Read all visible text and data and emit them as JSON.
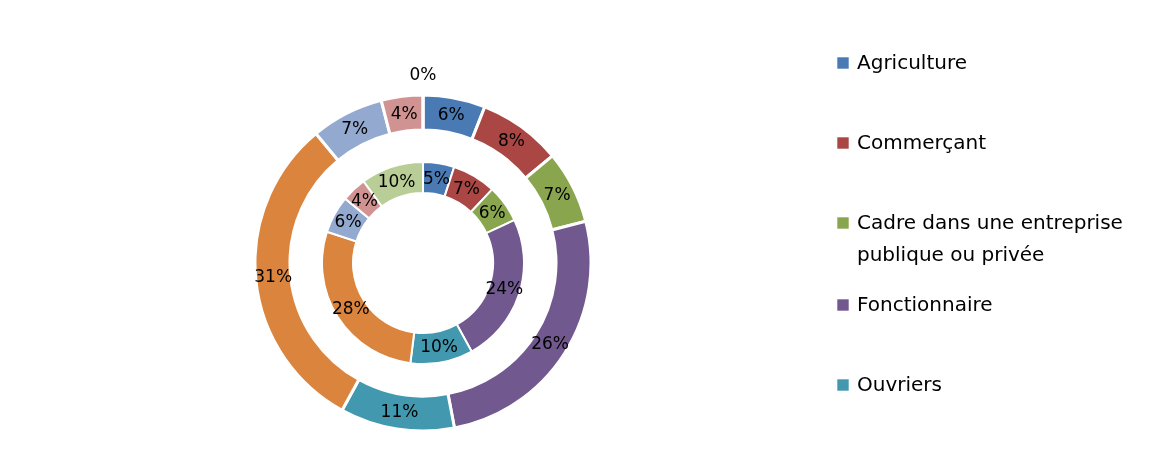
{
  "chart_data": {
    "type": "donut",
    "categories": [
      "Agriculture",
      "Commerçant",
      "Cadre dans une entreprise publique ou privée",
      "Fonctionnaire",
      "Ouvriers",
      null,
      null,
      null,
      null
    ],
    "colors": [
      "#4a7ab4",
      "#aa4643",
      "#89a54e",
      "#71588f",
      "#4198af",
      "#db843d",
      "#93a9cf",
      "#d19392",
      "#b9cd96"
    ],
    "series": [
      {
        "values": [
          5,
          7,
          6,
          24,
          10,
          28,
          6,
          4,
          10
        ],
        "value_labels": [
          "5%",
          "7%",
          "6%",
          "24%",
          "10%",
          "28%",
          "6%",
          "4%",
          "10%"
        ]
      },
      {
        "values": [
          6,
          8,
          7,
          26,
          11,
          31,
          7,
          4,
          0
        ],
        "value_labels": [
          "6%",
          "8%",
          "7%",
          "26%",
          "11%",
          "31%",
          "7%",
          "4%",
          "0%"
        ]
      }
    ],
    "legend": "right"
  }
}
